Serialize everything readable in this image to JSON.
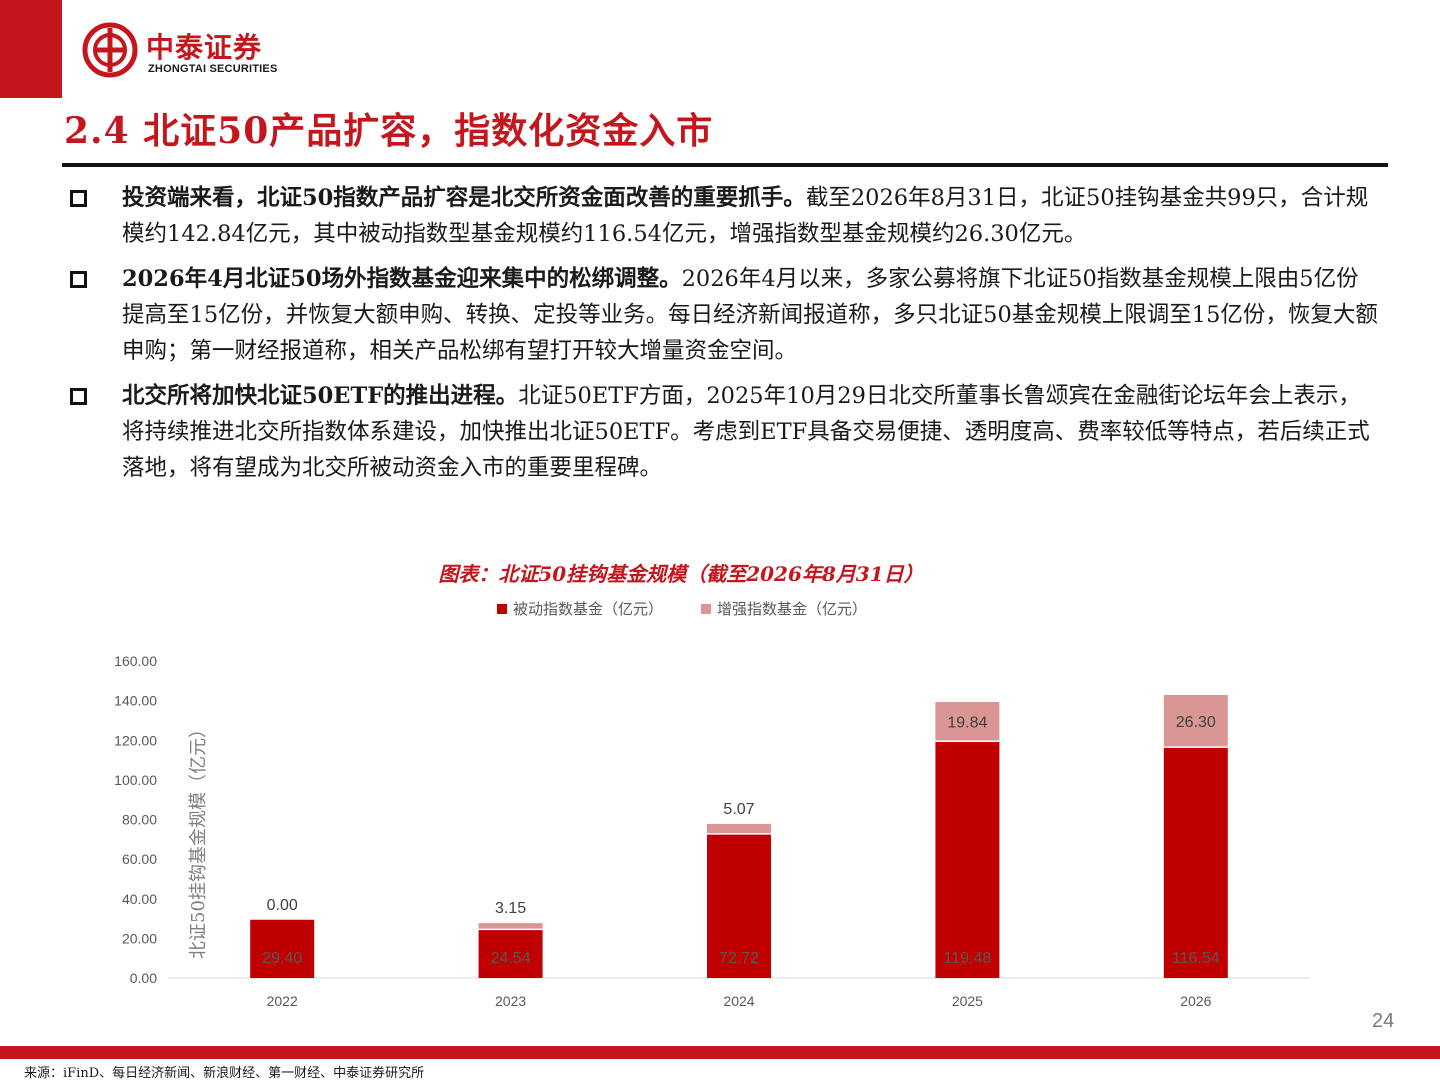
{
  "brand": {
    "name_cn": "中泰证券",
    "name_en": "ZHONGTAI SECURITIES",
    "color": "#c4161c"
  },
  "title": "2.4 北证50产品扩容，指数化资金入市",
  "bullets": [
    {
      "lead": "投资端来看，北证50指数产品扩容是北交所资金面改善的重要抓手。",
      "body": "截至2026年8月31日，北证50挂钩基金共99只，合计规模约142.84亿元，其中被动指数型基金规模约116.54亿元，增强指数型基金规模约26.30亿元。"
    },
    {
      "lead": "2026年4月北证50场外指数基金迎来集中的松绑调整。",
      "body": "2026年4月以来，多家公募将旗下北证50指数基金规模上限由5亿份提高至15亿份，并恢复大额申购、转换、定投等业务。每日经济新闻报道称，多只北证50基金规模上限调至15亿份，恢复大额申购；第一财经报道称，相关产品松绑有望打开较大增量资金空间。"
    },
    {
      "lead": "北交所将加快北证50ETF的推出进程。",
      "body": "北证50ETF方面，2025年10月29日北交所董事长鲁颂宾在金融街论坛年会上表示，将持续推进北交所指数体系建设，加快推出北证50ETF。考虑到ETF具备交易便捷、透明度高、费率较低等特点，若后续正式落地，将有望成为北交所被动资金入市的重要里程碑。"
    }
  ],
  "chart_title": "图表：北证50挂钩基金规模（截至2026年8月31日）",
  "chart_data": {
    "type": "bar",
    "stacked": true,
    "categories": [
      "2022",
      "2023",
      "2024",
      "2025",
      "2026"
    ],
    "series": [
      {
        "name": "被动指数基金（亿元）",
        "color": "#c00000",
        "values": [
          29.4,
          24.54,
          72.72,
          119.48,
          116.54
        ],
        "labels": [
          "29.40",
          "24.54",
          "72.72",
          "119.48",
          "116.54"
        ]
      },
      {
        "name": "增强指数基金（亿元）",
        "color": "#d99694",
        "values": [
          0.0,
          3.15,
          5.07,
          19.84,
          26.3
        ],
        "labels": [
          "0.00",
          "3.15",
          "5.07",
          "19.84",
          "26.30"
        ]
      }
    ],
    "ylabel": "北证50挂钩基金规模（亿元）",
    "ylim": [
      0,
      160
    ],
    "yticks": [
      "0.00",
      "20.00",
      "40.00",
      "60.00",
      "80.00",
      "100.00",
      "120.00",
      "140.00",
      "160.00"
    ],
    "legend": "top",
    "grid": false
  },
  "page_number": "24",
  "source": "来源：iFinD、每日经济新闻、新浪财经、第一财经、中泰证券研究所"
}
